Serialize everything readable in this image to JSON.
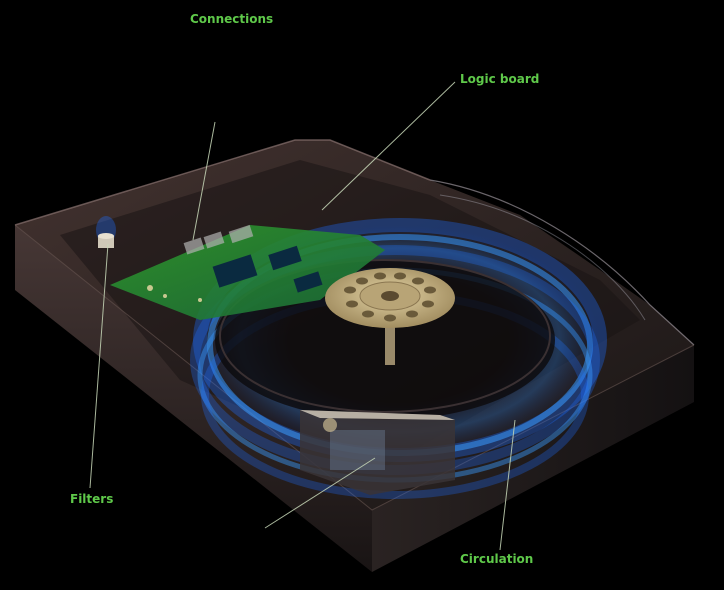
{
  "labels": {
    "connections": "Connections",
    "logic_board": "Logic board",
    "filters": "Filters",
    "circulation": "Circulation"
  },
  "colors": {
    "background": "#000000",
    "label": "#5fc94a",
    "leader": "#c8d8b8",
    "airflow": "#2a8cff",
    "board": "#2e8a2a",
    "platter": "#c9b483"
  }
}
